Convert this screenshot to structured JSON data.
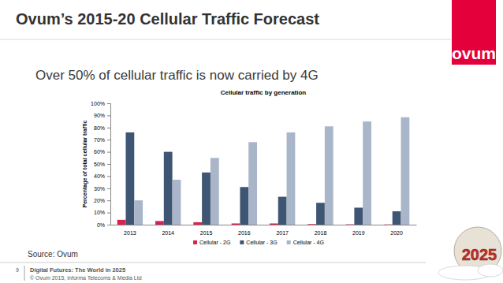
{
  "page": {
    "title": "Ovum’s 2015-20 Cellular Traffic Forecast",
    "subtitle": "Over 50% of cellular traffic is now carried by 4G",
    "logo": "ovum",
    "source": "Source: Ovum",
    "page_number": "9",
    "footer_title": "Digital Futures: The World in 2025",
    "copyright": "© Ovum 2015, Informa Telecoms & Media Ltd",
    "badge": "2025"
  },
  "chart_data": {
    "type": "bar",
    "title": "Cellular traffic by generation",
    "y_label": "Percentage of total cellular traffic",
    "categories": [
      "2013",
      "2014",
      "2015",
      "2016",
      "2017",
      "2018",
      "2019",
      "2020"
    ],
    "series": [
      {
        "name": "Cellular - 2G",
        "color": "#d5254e",
        "values": [
          4,
          3,
          2,
          1,
          1,
          0.5,
          0.3,
          0.2
        ]
      },
      {
        "name": "Cellular - 3G",
        "color": "#3e5573",
        "values": [
          76,
          60,
          43,
          31,
          23,
          18,
          14,
          11
        ]
      },
      {
        "name": "Cellular - 4G",
        "color": "#a9b5c9",
        "values": [
          20,
          37,
          55,
          68,
          76,
          81,
          85,
          88.5
        ]
      }
    ],
    "ylim": [
      0,
      100
    ],
    "yticks": [
      {
        "value": 0,
        "label": "0%"
      },
      {
        "value": 10,
        "label": "10%"
      },
      {
        "value": 20,
        "label": "20%"
      },
      {
        "value": 30,
        "label": "30%"
      },
      {
        "value": 40,
        "label": "40%"
      },
      {
        "value": 50,
        "label": "50%"
      },
      {
        "value": 60,
        "label": "60%"
      },
      {
        "value": 70,
        "label": "70%"
      },
      {
        "value": 80,
        "label": "80%"
      },
      {
        "value": 90,
        "label": "90%"
      },
      {
        "value": 100,
        "label": "100%"
      }
    ],
    "grid": false,
    "legend": "bottom"
  }
}
